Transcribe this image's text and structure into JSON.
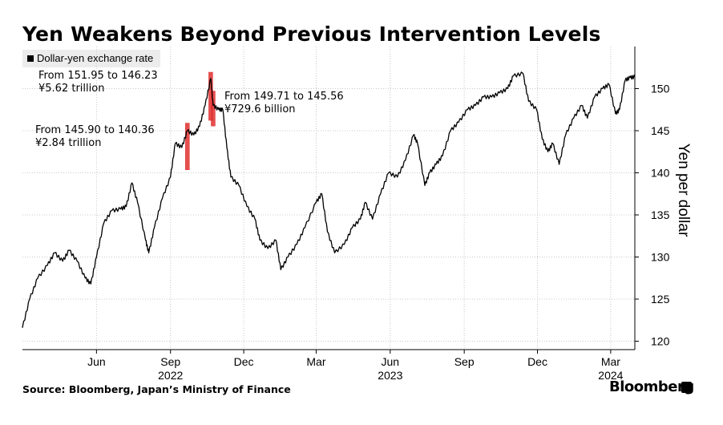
{
  "header": {
    "title": "Yen Weakens Beyond Previous Intervention Levels"
  },
  "legend": {
    "label": "Dollar-yen exchange rate"
  },
  "footer": {
    "source": "Source: Bloomberg, Japan’s Ministry of Finance",
    "brand": "Bloomberg"
  },
  "colors": {
    "line": "#000000",
    "intervention": "#e03030",
    "grid": "#c8c8c8"
  },
  "chart_data": {
    "type": "line",
    "ylabel": "Yen per dollar",
    "ylim": [
      119,
      155
    ],
    "yticks": [
      120,
      125,
      130,
      135,
      140,
      145,
      150
    ],
    "xlim": [
      "2022-03-01",
      "2024-03-31"
    ],
    "xticks": [
      {
        "date": "2022-06-01",
        "label": "Jun"
      },
      {
        "date": "2022-09-01",
        "label": "Sep"
      },
      {
        "date": "2022-12-01",
        "label": "Dec"
      },
      {
        "date": "2023-03-01",
        "label": "Mar"
      },
      {
        "date": "2023-06-01",
        "label": "Jun"
      },
      {
        "date": "2023-09-01",
        "label": "Sep"
      },
      {
        "date": "2023-12-01",
        "label": "Dec"
      },
      {
        "date": "2024-03-01",
        "label": "Mar"
      }
    ],
    "year_labels": [
      {
        "date": "2022-09-01",
        "label": "2022"
      },
      {
        "date": "2023-06-01",
        "label": "2023"
      },
      {
        "date": "2024-03-01",
        "label": "2024"
      }
    ],
    "grid": true,
    "legend_position": "top-left",
    "series": [
      {
        "name": "Dollar-yen exchange rate",
        "points": [
          [
            "2022-03-01",
            121.6
          ],
          [
            "2022-03-10",
            125.0
          ],
          [
            "2022-03-20",
            127.5
          ],
          [
            "2022-04-01",
            129.0
          ],
          [
            "2022-04-10",
            130.5
          ],
          [
            "2022-04-20",
            129.5
          ],
          [
            "2022-04-28",
            130.8
          ],
          [
            "2022-05-08",
            129.5
          ],
          [
            "2022-05-18",
            127.5
          ],
          [
            "2022-05-25",
            126.8
          ],
          [
            "2022-06-01",
            130.0
          ],
          [
            "2022-06-10",
            134.0
          ],
          [
            "2022-06-20",
            135.5
          ],
          [
            "2022-07-01",
            135.7
          ],
          [
            "2022-07-08",
            136.0
          ],
          [
            "2022-07-15",
            138.8
          ],
          [
            "2022-07-22",
            136.5
          ],
          [
            "2022-08-01",
            132.0
          ],
          [
            "2022-08-05",
            130.5
          ],
          [
            "2022-08-12",
            133.5
          ],
          [
            "2022-08-22",
            137.0
          ],
          [
            "2022-09-01",
            139.5
          ],
          [
            "2022-09-07",
            143.5
          ],
          [
            "2022-09-15",
            143.0
          ],
          [
            "2022-09-22",
            145.0
          ],
          [
            "2022-09-30",
            144.5
          ],
          [
            "2022-10-07",
            145.5
          ],
          [
            "2022-10-14",
            148.0
          ],
          [
            "2022-10-21",
            151.2
          ],
          [
            "2022-10-24",
            148.0
          ],
          [
            "2022-10-31",
            147.5
          ],
          [
            "2022-11-05",
            147.5
          ],
          [
            "2022-11-10",
            143.0
          ],
          [
            "2022-11-15",
            139.5
          ],
          [
            "2022-11-25",
            138.5
          ],
          [
            "2022-12-05",
            136.0
          ],
          [
            "2022-12-15",
            134.5
          ],
          [
            "2022-12-21",
            132.0
          ],
          [
            "2022-12-31",
            131.0
          ],
          [
            "2023-01-10",
            132.0
          ],
          [
            "2023-01-16",
            128.5
          ],
          [
            "2023-01-25",
            130.0
          ],
          [
            "2023-02-05",
            131.5
          ],
          [
            "2023-02-15",
            133.5
          ],
          [
            "2023-03-01",
            136.5
          ],
          [
            "2023-03-08",
            137.5
          ],
          [
            "2023-03-15",
            133.0
          ],
          [
            "2023-03-24",
            130.5
          ],
          [
            "2023-04-05",
            131.5
          ],
          [
            "2023-04-15",
            133.5
          ],
          [
            "2023-04-25",
            134.5
          ],
          [
            "2023-05-01",
            136.5
          ],
          [
            "2023-05-10",
            134.5
          ],
          [
            "2023-05-20",
            137.5
          ],
          [
            "2023-05-30",
            140.0
          ],
          [
            "2023-06-10",
            139.5
          ],
          [
            "2023-06-20",
            141.5
          ],
          [
            "2023-06-30",
            144.5
          ],
          [
            "2023-07-05",
            143.5
          ],
          [
            "2023-07-14",
            138.5
          ],
          [
            "2023-07-20",
            140.0
          ],
          [
            "2023-07-28",
            141.0
          ],
          [
            "2023-08-05",
            142.0
          ],
          [
            "2023-08-15",
            145.0
          ],
          [
            "2023-08-25",
            146.0
          ],
          [
            "2023-09-05",
            147.5
          ],
          [
            "2023-09-15",
            148.0
          ],
          [
            "2023-09-25",
            149.0
          ],
          [
            "2023-10-05",
            149.0
          ],
          [
            "2023-10-15",
            149.5
          ],
          [
            "2023-10-25",
            150.0
          ],
          [
            "2023-11-01",
            151.5
          ],
          [
            "2023-11-13",
            151.8
          ],
          [
            "2023-11-20",
            148.5
          ],
          [
            "2023-11-30",
            147.5
          ],
          [
            "2023-12-07",
            144.0
          ],
          [
            "2023-12-14",
            142.5
          ],
          [
            "2023-12-20",
            143.5
          ],
          [
            "2023-12-28",
            141.0
          ],
          [
            "2024-01-05",
            144.5
          ],
          [
            "2024-01-15",
            146.5
          ],
          [
            "2024-01-25",
            148.0
          ],
          [
            "2024-02-01",
            146.5
          ],
          [
            "2024-02-10",
            149.0
          ],
          [
            "2024-02-20",
            150.0
          ],
          [
            "2024-02-28",
            150.5
          ],
          [
            "2024-03-07",
            147.0
          ],
          [
            "2024-03-12",
            147.5
          ],
          [
            "2024-03-19",
            151.0
          ],
          [
            "2024-03-25",
            151.3
          ],
          [
            "2024-03-31",
            151.4
          ]
        ]
      }
    ],
    "interventions": [
      {
        "date_start": "2022-09-22",
        "date_end": "2022-09-22",
        "high": 145.9,
        "low": 140.36
      },
      {
        "date_start": "2022-10-21",
        "date_end": "2022-10-21",
        "high": 151.95,
        "low": 146.23
      },
      {
        "date_start": "2022-10-24",
        "date_end": "2022-10-24",
        "high": 149.71,
        "low": 145.56
      }
    ],
    "annotations": [
      {
        "line1": "From 151.95 to 146.23",
        "line2": "¥5.62 trillion"
      },
      {
        "line1": "From 149.71 to 145.56",
        "line2": "¥729.6 billion"
      },
      {
        "line1": "From 145.90 to 140.36",
        "line2": "¥2.84 trillion"
      }
    ]
  }
}
